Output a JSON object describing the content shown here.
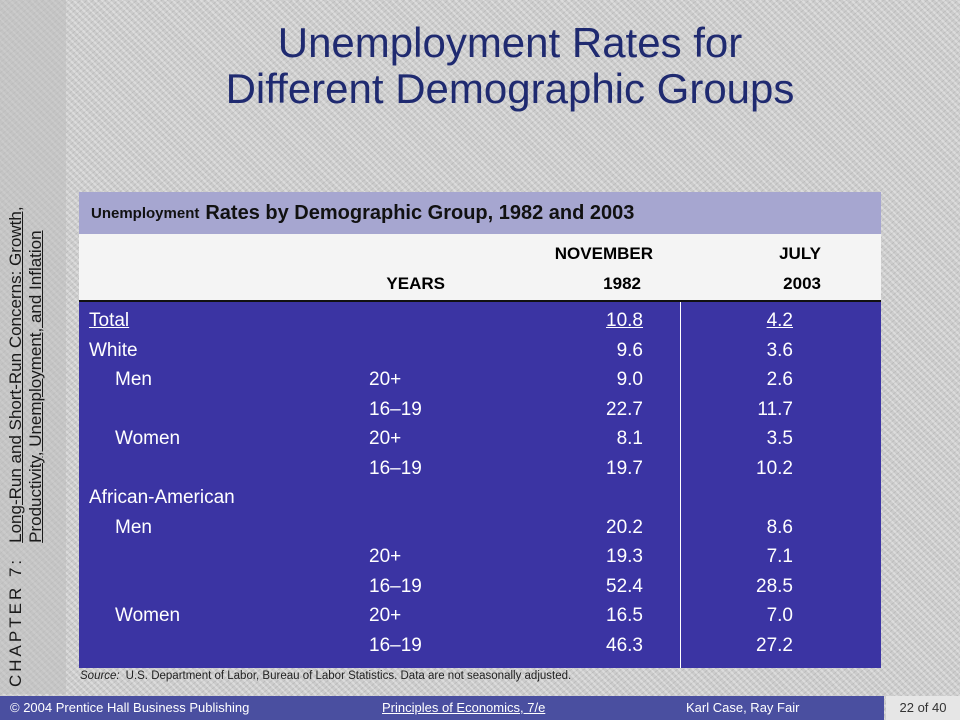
{
  "sidebar": {
    "chapter": "CHAPTER 7:",
    "topic_line1": "Long-Run and Short-Run Concerns: Growth,",
    "topic_line2": "Productivity, Unemployment, and Inflation"
  },
  "title": {
    "line1": "Unemployment Rates for",
    "line2": "Different Demographic Groups"
  },
  "chart_data": {
    "type": "table",
    "caption_small": "Unemployment",
    "caption_big": "Rates by Demographic Group, 1982 and 2003",
    "header": {
      "years": "YEARS",
      "nov_line1": "NOVEMBER",
      "nov_line2": "1982",
      "jul_line1": "JULY",
      "jul_line2": "2003"
    },
    "rows": [
      {
        "label": "Total",
        "years": "",
        "nov": "10.8",
        "jul": "4.2",
        "indent": false,
        "underline": true
      },
      {
        "label": "White",
        "years": "",
        "nov": "9.6",
        "jul": "3.6",
        "indent": false
      },
      {
        "label": "Men",
        "years": "20+",
        "nov": "9.0",
        "jul": "2.6",
        "indent": true
      },
      {
        "label": "",
        "years": "16–19",
        "nov": "22.7",
        "jul": "11.7",
        "indent": true
      },
      {
        "label": "Women",
        "years": "20+",
        "nov": "8.1",
        "jul": "3.5",
        "indent": true
      },
      {
        "label": "",
        "years": "16–19",
        "nov": "19.7",
        "jul": "10.2",
        "indent": true
      },
      {
        "label": "African-American",
        "years": "",
        "nov": "",
        "jul": "",
        "indent": false
      },
      {
        "label": "Men",
        "years": "",
        "nov": "20.2",
        "jul": "8.6",
        "indent": true
      },
      {
        "label": "",
        "years": "20+",
        "nov": "19.3",
        "jul": "7.1",
        "indent": true
      },
      {
        "label": "",
        "years": "16–19",
        "nov": "52.4",
        "jul": "28.5",
        "indent": true
      },
      {
        "label": "Women",
        "years": "20+",
        "nov": "16.5",
        "jul": "7.0",
        "indent": true
      },
      {
        "label": "",
        "years": "16–19",
        "nov": "46.3",
        "jul": "27.2",
        "indent": true
      }
    ],
    "source_label": "Source:",
    "source_text": "U.S. Department of Labor, Bureau of Labor Statistics. Data are not seasonally adjusted."
  },
  "footer": {
    "copyright": "© 2004 Prentice Hall Business Publishing",
    "book": "Principles of Economics, 7/e",
    "authors": "Karl Case, Ray Fair",
    "page": "22 of 40"
  },
  "colors": {
    "title": "#1f2a70",
    "table_body": "#3b34a3",
    "caption_bar": "#a6a6d0",
    "footer_bar": "#4a4fa0"
  }
}
